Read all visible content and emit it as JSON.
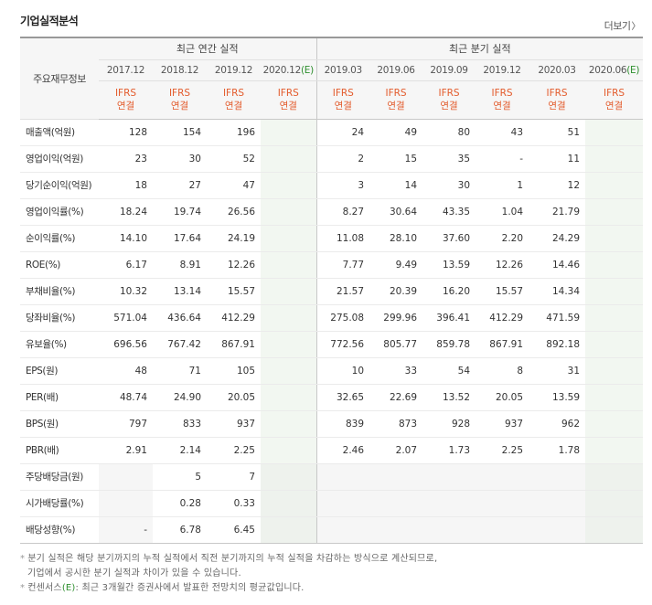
{
  "section": {
    "title": "기업실적분석",
    "more_label": "더보기"
  },
  "header": {
    "item_label": "주요재무정보",
    "annual_label": "최근 연간 실적",
    "quarter_label": "최근 분기 실적",
    "periods": [
      {
        "text": "2017.12",
        "est": false
      },
      {
        "text": "2018.12",
        "est": false
      },
      {
        "text": "2019.12",
        "est": false
      },
      {
        "text": "2020.12",
        "est": true
      },
      {
        "text": "2019.03",
        "est": false
      },
      {
        "text": "2019.06",
        "est": false
      },
      {
        "text": "2019.09",
        "est": false
      },
      {
        "text": "2019.12",
        "est": false
      },
      {
        "text": "2020.03",
        "est": false
      },
      {
        "text": "2020.06",
        "est": true
      }
    ],
    "est_mark": "(E)",
    "ifrs_top": "IFRS",
    "ifrs_bottom": "연결"
  },
  "rows": [
    {
      "label": "매출액(억원)",
      "values": [
        "128",
        "154",
        "196",
        "",
        "24",
        "49",
        "80",
        "43",
        "51",
        ""
      ],
      "group": "first"
    },
    {
      "label": "영업이익(억원)",
      "values": [
        "23",
        "30",
        "52",
        "",
        "2",
        "15",
        "35",
        "-",
        "11",
        ""
      ]
    },
    {
      "label": "당기순이익(억원)",
      "values": [
        "18",
        "27",
        "47",
        "",
        "3",
        "14",
        "30",
        "1",
        "12",
        ""
      ]
    },
    {
      "label": "영업이익률(%)",
      "values": [
        "18.24",
        "19.74",
        "26.56",
        "",
        "8.27",
        "30.64",
        "43.35",
        "1.04",
        "21.79",
        ""
      ],
      "group": "first"
    },
    {
      "label": "순이익률(%)",
      "values": [
        "14.10",
        "17.64",
        "24.19",
        "",
        "11.08",
        "28.10",
        "37.60",
        "2.20",
        "24.29",
        ""
      ]
    },
    {
      "label": "ROE(%)",
      "values": [
        "6.17",
        "8.91",
        "12.26",
        "",
        "7.77",
        "9.49",
        "13.59",
        "12.26",
        "14.46",
        ""
      ]
    },
    {
      "label": "부채비율(%)",
      "values": [
        "10.32",
        "13.14",
        "15.57",
        "",
        "21.57",
        "20.39",
        "16.20",
        "15.57",
        "14.34",
        ""
      ],
      "group": "first"
    },
    {
      "label": "당좌비율(%)",
      "values": [
        "571.04",
        "436.64",
        "412.29",
        "",
        "275.08",
        "299.96",
        "396.41",
        "412.29",
        "471.59",
        ""
      ]
    },
    {
      "label": "유보율(%)",
      "values": [
        "696.56",
        "767.42",
        "867.91",
        "",
        "772.56",
        "805.77",
        "859.78",
        "867.91",
        "892.18",
        ""
      ]
    },
    {
      "label": "EPS(원)",
      "values": [
        "48",
        "71",
        "105",
        "",
        "10",
        "33",
        "54",
        "8",
        "31",
        ""
      ],
      "group": "first"
    },
    {
      "label": "PER(배)",
      "values": [
        "48.74",
        "24.90",
        "20.05",
        "",
        "32.65",
        "22.69",
        "13.52",
        "20.05",
        "13.59",
        ""
      ]
    },
    {
      "label": "BPS(원)",
      "values": [
        "797",
        "833",
        "937",
        "",
        "839",
        "873",
        "928",
        "937",
        "962",
        ""
      ]
    },
    {
      "label": "PBR(배)",
      "values": [
        "2.91",
        "2.14",
        "2.25",
        "",
        "2.46",
        "2.07",
        "1.73",
        "2.25",
        "1.78",
        ""
      ]
    },
    {
      "label": "주당배당금(원)",
      "values": [
        "",
        "5",
        "7",
        "",
        "",
        "",
        "",
        "",
        "",
        ""
      ],
      "group": "first",
      "dividend": true
    },
    {
      "label": "시가배당률(%)",
      "values": [
        "",
        "0.28",
        "0.33",
        "",
        "",
        "",
        "",
        "",
        "",
        ""
      ],
      "dividend": true
    },
    {
      "label": "배당성향(%)",
      "values": [
        "-",
        "6.78",
        "6.45",
        "",
        "",
        "",
        "",
        "",
        "",
        ""
      ],
      "dividend": true
    }
  ],
  "notes": {
    "line1": "분기 실적은 해당 분기까지의 누적 실적에서 직전 분기까지의 누적 실적을 차감하는 방식으로 계산되므로,",
    "line2": "기업에서 공시한 분기 실적과 차이가 있을 수 있습니다.",
    "line3_prefix": "컨센서스",
    "line3_mark": "(E)",
    "line3_suffix": ": 최근 3개월간 증권사에서 발표한 전망치의 평균값입니다."
  }
}
